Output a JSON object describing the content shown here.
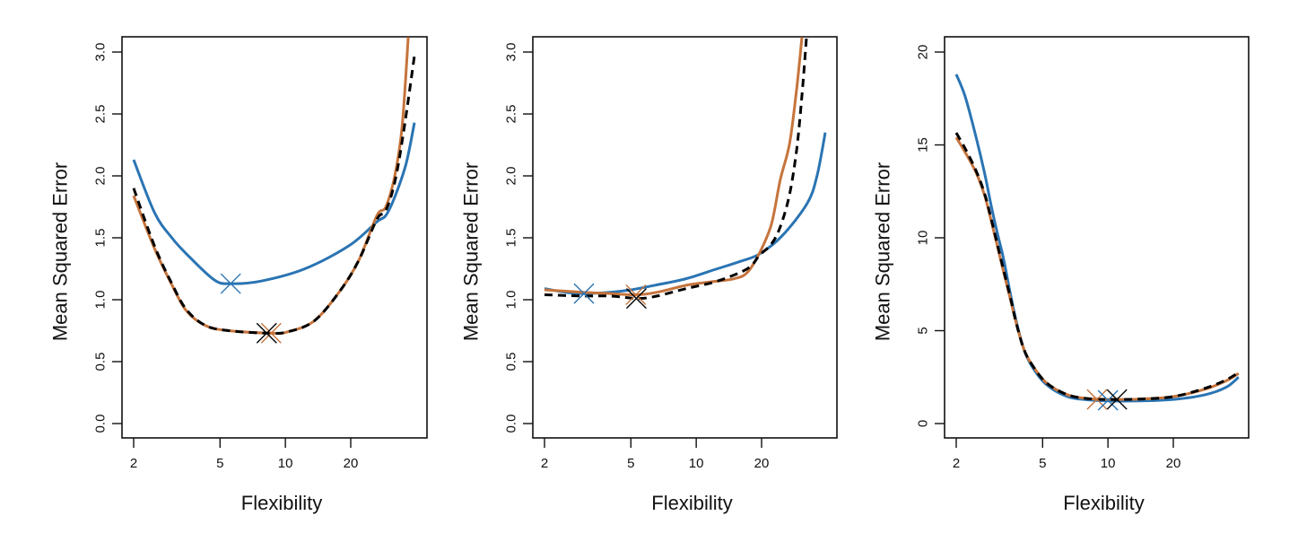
{
  "colors": {
    "train": "#2a74b3",
    "test": "#c6743c",
    "true": "#000000"
  },
  "chart_data": [
    {
      "type": "line",
      "title": "",
      "xlabel": "Flexibility",
      "ylabel": "Mean Squared Error",
      "xscale": "log",
      "xlim": [
        1.85,
        44
      ],
      "ylim": [
        -0.12,
        3.12
      ],
      "xticks": [
        2,
        5,
        10,
        20
      ],
      "xtick_labels": [
        "2",
        "5",
        "10",
        "20"
      ],
      "yticks": [
        0.0,
        0.5,
        1.0,
        1.5,
        2.0,
        2.5,
        3.0
      ],
      "ytick_labels": [
        "0.0",
        "0.5",
        "1.0",
        "1.5",
        "2.0",
        "2.5",
        "3.0"
      ],
      "grid": false,
      "series": [
        {
          "name": "blue-solid",
          "style": "solid",
          "color_key": "train",
          "x": [
            2,
            2.5,
            3.0,
            3.5,
            4.7,
            5.6,
            7.7,
            12.3,
            19.8,
            26.4,
            29,
            31.9,
            36,
            39.3
          ],
          "y": [
            2.13,
            1.7,
            1.5,
            1.37,
            1.16,
            1.13,
            1.15,
            1.25,
            1.44,
            1.63,
            1.68,
            1.83,
            2.1,
            2.43
          ]
        },
        {
          "name": "orange-solid",
          "style": "solid",
          "color_key": "test",
          "x": [
            2,
            2.5,
            3.0,
            3.5,
            4.3,
            5.5,
            8.6,
            10.2,
            13.6,
            18,
            21.8,
            26.4,
            29,
            31.9,
            34.5,
            36.8
          ],
          "y": [
            1.84,
            1.41,
            1.12,
            0.91,
            0.79,
            0.75,
            0.73,
            0.74,
            0.83,
            1.08,
            1.32,
            1.68,
            1.75,
            2.0,
            2.4,
            3.12
          ]
        },
        {
          "name": "black-dashed",
          "style": "dashed",
          "color_key": "true",
          "x": [
            2,
            2.5,
            3.0,
            3.5,
            4.3,
            5.5,
            8.2,
            10.2,
            13.6,
            18,
            21.8,
            26.4,
            29,
            31.9,
            35,
            39.3
          ],
          "y": [
            1.9,
            1.43,
            1.13,
            0.92,
            0.79,
            0.75,
            0.73,
            0.74,
            0.83,
            1.08,
            1.32,
            1.65,
            1.72,
            1.95,
            2.35,
            2.97
          ]
        }
      ],
      "markers": [
        {
          "name": "blue-min",
          "color_key": "train",
          "x": 5.6,
          "y": 1.13
        },
        {
          "name": "orange-min",
          "color_key": "test",
          "x": 8.6,
          "y": 0.73
        },
        {
          "name": "black-min",
          "color_key": "true",
          "x": 8.2,
          "y": 0.73
        }
      ]
    },
    {
      "type": "line",
      "title": "",
      "xlabel": "Flexibility",
      "ylabel": "Mean Squared Error",
      "xscale": "log",
      "xlim": [
        1.85,
        44
      ],
      "ylim": [
        -0.12,
        3.12
      ],
      "xticks": [
        2,
        5,
        10,
        20
      ],
      "xtick_labels": [
        "2",
        "5",
        "10",
        "20"
      ],
      "yticks": [
        0.0,
        0.5,
        1.0,
        1.5,
        2.0,
        2.5,
        3.0
      ],
      "ytick_labels": [
        "0.0",
        "0.5",
        "1.0",
        "1.5",
        "2.0",
        "2.5",
        "3.0"
      ],
      "grid": false,
      "series": [
        {
          "name": "blue-solid",
          "style": "solid",
          "color_key": "train",
          "x": [
            2,
            2.5,
            3.0,
            4.0,
            5.0,
            6.6,
            9.0,
            12.5,
            16,
            19.6,
            25,
            32.5,
            36,
            39.3
          ],
          "y": [
            1.09,
            1.06,
            1.05,
            1.06,
            1.08,
            1.12,
            1.17,
            1.25,
            1.31,
            1.37,
            1.52,
            1.78,
            2.0,
            2.35
          ]
        },
        {
          "name": "orange-solid",
          "style": "solid",
          "color_key": "test",
          "x": [
            2,
            3.0,
            4.0,
            5.3,
            6.6,
            9.2,
            12.5,
            15,
            17.2,
            19.6,
            22.2,
            24.4,
            26.9,
            29,
            30.7
          ],
          "y": [
            1.08,
            1.06,
            1.05,
            1.04,
            1.06,
            1.12,
            1.15,
            1.17,
            1.22,
            1.38,
            1.61,
            1.97,
            2.26,
            2.7,
            3.12
          ]
        },
        {
          "name": "black-dashed",
          "style": "dashed",
          "color_key": "true",
          "x": [
            2,
            3.0,
            4.0,
            5.4,
            6.6,
            9.0,
            12.5,
            17.2,
            19.6,
            22.2,
            24.4,
            26.9,
            29,
            30.7,
            32.2
          ],
          "y": [
            1.04,
            1.03,
            1.03,
            1.01,
            1.03,
            1.09,
            1.15,
            1.25,
            1.36,
            1.45,
            1.59,
            1.85,
            2.21,
            2.65,
            3.12
          ]
        }
      ],
      "markers": [
        {
          "name": "blue-min",
          "color_key": "train",
          "x": 3.04,
          "y": 1.05
        },
        {
          "name": "orange-min",
          "color_key": "test",
          "x": 5.27,
          "y": 1.04
        },
        {
          "name": "black-min",
          "color_key": "true",
          "x": 5.3,
          "y": 1.01
        }
      ]
    },
    {
      "type": "line",
      "title": "",
      "xlabel": "Flexibility",
      "ylabel": "Mean Squared Error",
      "xscale": "log",
      "xlim": [
        1.85,
        44
      ],
      "ylim": [
        -0.78,
        20.8
      ],
      "xticks": [
        2,
        5,
        10,
        20
      ],
      "xtick_labels": [
        "2",
        "5",
        "10",
        "20"
      ],
      "yticks": [
        0,
        5,
        10,
        15,
        20
      ],
      "ytick_labels": [
        "0",
        "5",
        "10",
        "15",
        "20"
      ],
      "grid": false,
      "series": [
        {
          "name": "blue-solid",
          "style": "solid",
          "color_key": "train",
          "x": [
            2,
            2.2,
            2.47,
            2.7,
            2.9,
            3.1,
            3.3,
            3.55,
            3.8,
            4.1,
            4.45,
            5.2,
            6.5,
            8,
            10,
            14,
            20,
            28,
            35,
            40
          ],
          "y": [
            18.8,
            17.6,
            15.4,
            13.5,
            11.7,
            10.2,
            8.9,
            7.0,
            5.4,
            4.0,
            3.1,
            2.1,
            1.45,
            1.28,
            1.22,
            1.22,
            1.3,
            1.55,
            1.95,
            2.5
          ]
        },
        {
          "name": "orange-solid",
          "style": "solid",
          "color_key": "test",
          "x": [
            2,
            2.2,
            2.47,
            2.7,
            2.9,
            3.1,
            3.3,
            3.55,
            3.8,
            4.1,
            4.45,
            5.2,
            6.5,
            8,
            10,
            14,
            20,
            28,
            35,
            40
          ],
          "y": [
            15.4,
            14.6,
            13.5,
            12.3,
            10.9,
            9.5,
            8.2,
            6.7,
            5.3,
            4.0,
            3.2,
            2.2,
            1.55,
            1.35,
            1.3,
            1.32,
            1.45,
            1.85,
            2.3,
            2.7
          ]
        },
        {
          "name": "black-dashed",
          "style": "dashed",
          "color_key": "true",
          "x": [
            2,
            2.2,
            2.47,
            2.7,
            2.9,
            3.1,
            3.3,
            3.55,
            3.8,
            4.1,
            4.45,
            5.2,
            6.5,
            8,
            10,
            14,
            20,
            28,
            35,
            40
          ],
          "y": [
            15.65,
            14.8,
            13.6,
            12.4,
            11.0,
            9.6,
            8.3,
            6.8,
            5.3,
            4.0,
            3.2,
            2.2,
            1.55,
            1.35,
            1.3,
            1.32,
            1.45,
            1.9,
            2.35,
            2.75
          ]
        }
      ],
      "markers": [
        {
          "name": "orange-min",
          "color_key": "test",
          "x": 8.9,
          "y": 1.3
        },
        {
          "name": "blue-min",
          "color_key": "train",
          "x": 10.0,
          "y": 1.25
        },
        {
          "name": "black-min",
          "color_key": "true",
          "x": 11.0,
          "y": 1.3
        }
      ]
    }
  ]
}
